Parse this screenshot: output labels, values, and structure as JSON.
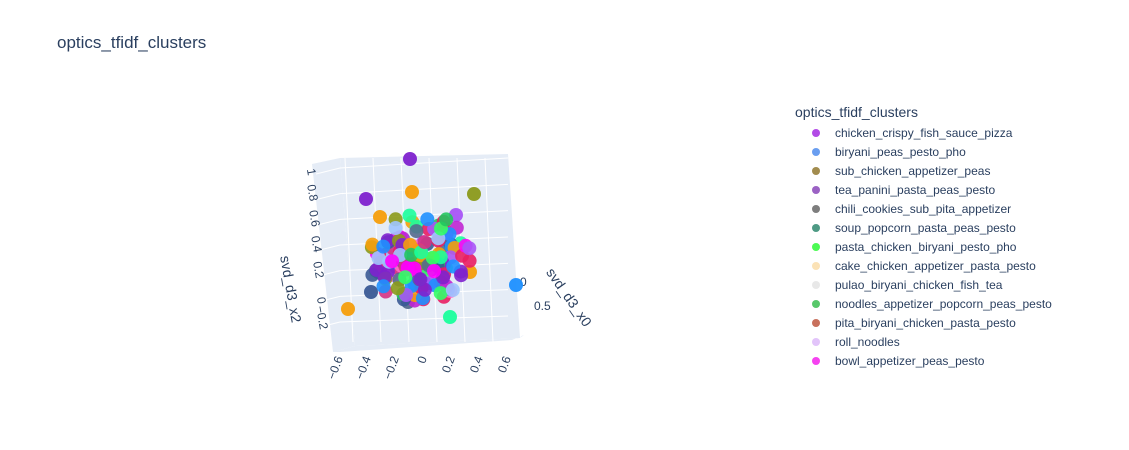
{
  "chart_data": {
    "type": "scatter",
    "projection": "3d",
    "title": "optics_tfidf_clusters",
    "axes": {
      "x": {
        "label": "svd_d3_x0",
        "visible_ticks": [
          "0",
          "0.5"
        ]
      },
      "y": {
        "label": "",
        "ticks": [
          "−0.6",
          "−0.4",
          "−0.2",
          "0",
          "0.2",
          "0.4",
          "0.6"
        ]
      },
      "z": {
        "label": "svd_d3_x2",
        "ticks": [
          "−0.2",
          "0",
          "0.2",
          "0.4",
          "0.6",
          "0.8",
          "1"
        ]
      }
    },
    "legend": {
      "title": "optics_tfidf_clusters",
      "placement": "right",
      "items": [
        {
          "name": "chicken_crispy_fish_sauce_pizza",
          "color": "#b24be6"
        },
        {
          "name": "biryani_peas_pesto_pho",
          "color": "#6a9ef0"
        },
        {
          "name": "sub_chicken_appetizer_peas",
          "color": "#a28c4e"
        },
        {
          "name": "tea_panini_pasta_peas_pesto",
          "color": "#9b62c4"
        },
        {
          "name": "chili_cookies_sub_pita_appetizer",
          "color": "#7e7e7e"
        },
        {
          "name": "soup_popcorn_pasta_peas_pesto",
          "color": "#4e9a84"
        },
        {
          "name": "pasta_chicken_biryani_pesto_pho",
          "color": "#4cfa54"
        },
        {
          "name": "cake_chicken_appetizer_pasta_pesto",
          "color": "#fbe2b6"
        },
        {
          "name": "pulao_biryani_chicken_fish_tea",
          "color": "#e8e8e8"
        },
        {
          "name": "noodles_appetizer_popcorn_peas_pesto",
          "color": "#58c86a"
        },
        {
          "name": "pita_biryani_chicken_pasta_pesto",
          "color": "#c8705c"
        },
        {
          "name": "roll_noodles",
          "color": "#e2c4fa"
        },
        {
          "name": "bowl_appetizer_peas_pesto",
          "color": "#f542f0"
        }
      ]
    },
    "marker_colors": [
      "#a855f7",
      "#7e22ce",
      "#ff00ff",
      "#e91e63",
      "#ff6ec7",
      "#f59e0b",
      "#3a5a95",
      "#556b8e",
      "#22c55e",
      "#33ff66",
      "#1aff9c",
      "#1e90ff",
      "#9ec5fe",
      "#8b9a1a",
      "#d63384",
      "#c026d3"
    ]
  }
}
